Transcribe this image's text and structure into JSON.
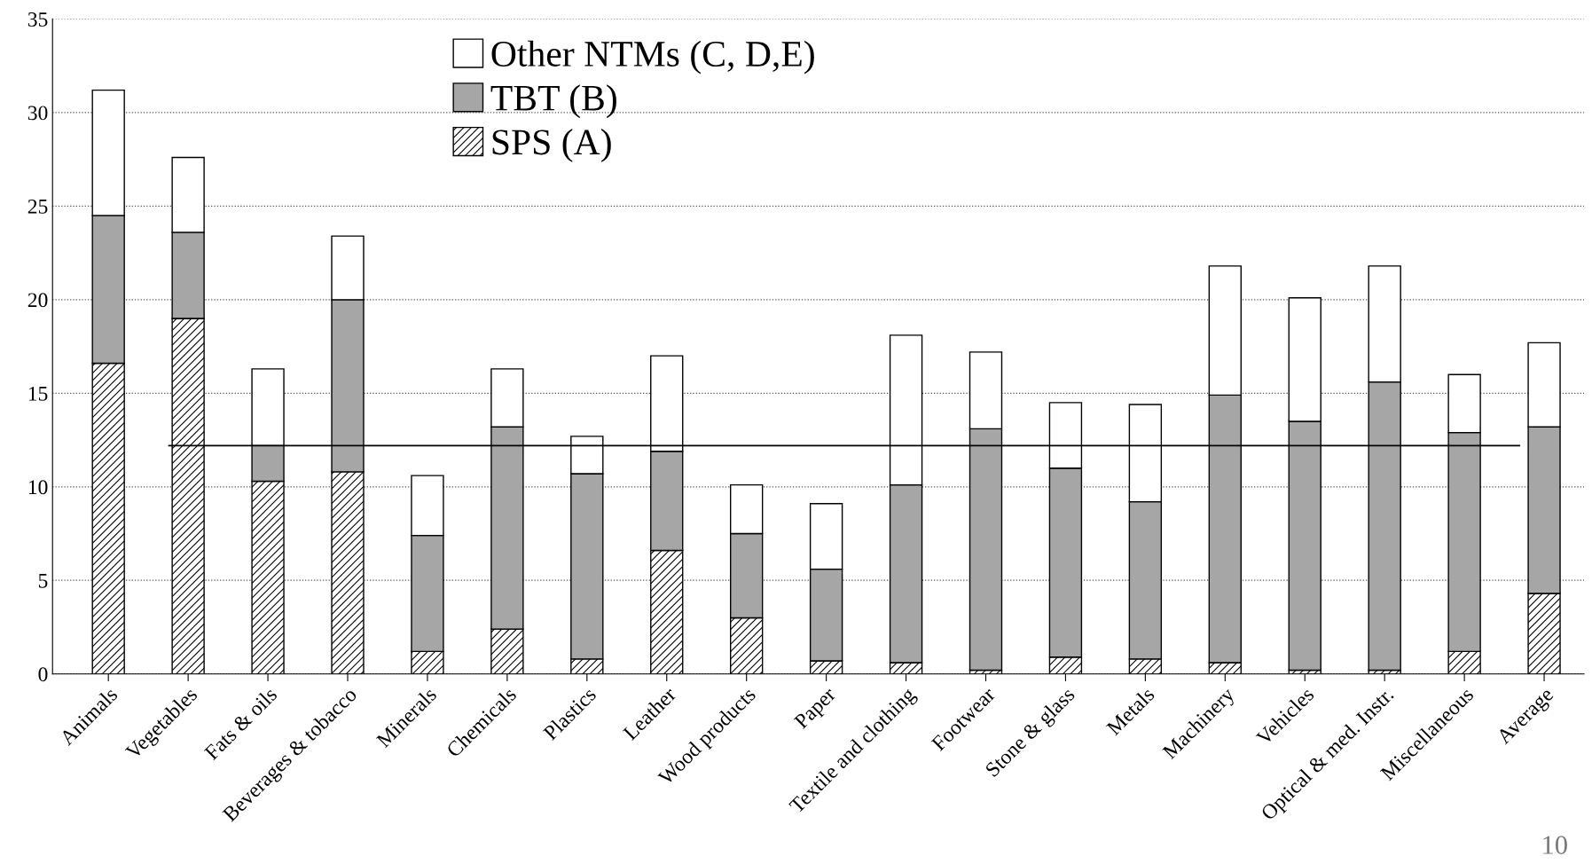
{
  "chart_data": {
    "type": "bar",
    "stacked": true,
    "categories": [
      "Animals",
      "Vegetables",
      "Fats & oils",
      "Beverages & tobacco",
      "Minerals",
      "Chemicals",
      "Plastics",
      "Leather",
      "Wood products",
      "Paper",
      "Textile and clothing",
      "Footwear",
      "Stone & glass",
      "Metals",
      "Machinery",
      "Vehicles",
      "Optical & med. Instr.",
      "Miscellaneous",
      "Average"
    ],
    "series": [
      {
        "name": "SPS (A)",
        "color": "#000000",
        "values": [
          16.6,
          19.0,
          10.3,
          10.8,
          1.2,
          2.4,
          0.8,
          6.6,
          3.0,
          0.7,
          0.6,
          0.2,
          0.9,
          0.8,
          0.6,
          0.2,
          0.2,
          1.2,
          4.3
        ]
      },
      {
        "name": "TBT (B)",
        "color": "#a6a6a6",
        "values": [
          7.9,
          4.6,
          1.9,
          9.2,
          6.2,
          10.8,
          9.9,
          5.3,
          4.5,
          4.9,
          9.5,
          12.9,
          10.1,
          8.4,
          14.3,
          13.3,
          15.4,
          11.7,
          8.9
        ]
      },
      {
        "name": "Other NTMs (C, D,E)",
        "color": "#ffffff",
        "values": [
          6.7,
          4.0,
          4.1,
          3.4,
          3.2,
          3.1,
          2.0,
          5.1,
          2.6,
          3.5,
          8.0,
          4.1,
          3.5,
          5.2,
          6.9,
          6.6,
          6.2,
          3.1,
          4.5
        ]
      }
    ],
    "ylim": [
      0,
      35
    ],
    "yticks": [
      0,
      5,
      10,
      15,
      20,
      25,
      30,
      35
    ],
    "ref_lines": [
      {
        "axis": "y",
        "value": 12.2,
        "color": "#000000"
      }
    ],
    "grid": "y",
    "legend": "top",
    "annotations": [
      "10"
    ]
  }
}
